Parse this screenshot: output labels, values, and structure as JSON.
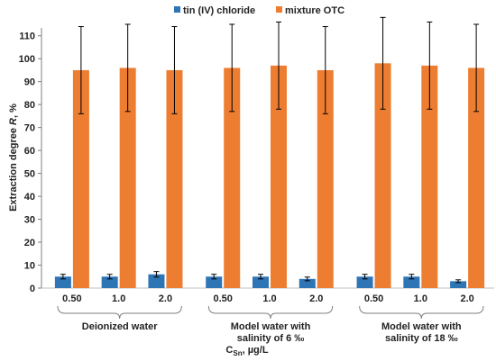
{
  "chart_data": {
    "type": "bar",
    "y_title_main": "Extraction degree ",
    "y_title_italic": "R",
    "y_title_suffix": ", %",
    "ylim": [
      0,
      115
    ],
    "yticks": [
      "0",
      "10",
      "20",
      "30",
      "40",
      "50",
      "60",
      "70",
      "80",
      "90",
      "100",
      "110"
    ],
    "x_title_main": "C",
    "x_title_sub": "Sn",
    "x_title_suffix": ", µg/L",
    "legend_position": "top",
    "series": [
      {
        "name": "tin (IV) chloride",
        "color": "#2E75B6"
      },
      {
        "name": "mixture OTC",
        "color": "#ED7D31"
      }
    ],
    "groups": [
      {
        "label_line1": "Deionized water",
        "label_line2": "",
        "categories": [
          "0.50",
          "1.0",
          "2.0"
        ],
        "tin": [
          5,
          5,
          6
        ],
        "tin_err": [
          1,
          1,
          1.2
        ],
        "otc": [
          95,
          96,
          95
        ],
        "otc_err": [
          19,
          19,
          19
        ]
      },
      {
        "label_line1": "Model water with",
        "label_line2": "salinity of 6 ‰",
        "categories": [
          "0.50",
          "1.0",
          "2.0"
        ],
        "tin": [
          5,
          5,
          4
        ],
        "tin_err": [
          1,
          1,
          0.8
        ],
        "otc": [
          96,
          97,
          95
        ],
        "otc_err": [
          19,
          19,
          19
        ]
      },
      {
        "label_line1": "Model water with",
        "label_line2": "salinity of 18 ‰",
        "categories": [
          "0.50",
          "1.0",
          "2.0"
        ],
        "tin": [
          5,
          5,
          3
        ],
        "tin_err": [
          1,
          1,
          0.6
        ],
        "otc": [
          98,
          97,
          96
        ],
        "otc_err": [
          20,
          19,
          19
        ]
      }
    ],
    "grid": false
  }
}
